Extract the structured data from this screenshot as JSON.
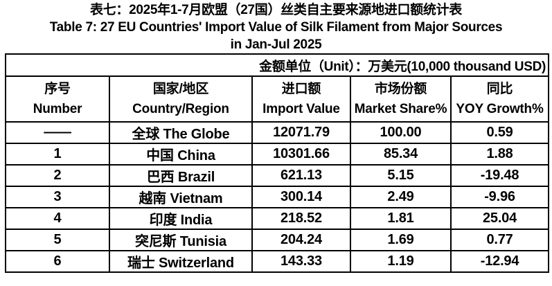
{
  "title": {
    "line1_zh": "表七：2025年1-7月欧盟（27国）丝类自主要来源地进口额统计表",
    "line2_en": "Table 7: 27 EU Countries' Import Value of Silk Filament from Major Sources",
    "line3_en": "in Jan-Jul 2025"
  },
  "unit_note": "金额单位（Unit）：万美元(10,000 thousand USD)",
  "colors": {
    "text": "#000000",
    "border": "#000000",
    "background": "#ffffff"
  },
  "chart_data": {
    "type": "table",
    "title": "表七：2025年1-7月欧盟（27国）丝类自主要来源地进口额统计表 / Table 7: 27 EU Countries' Import Value of Silk Filament from Major Sources in Jan-Jul 2025",
    "unit": "万美元(10,000 thousand USD)",
    "columns": [
      {
        "zh": "序号",
        "en": "Number"
      },
      {
        "zh": "国家/地区",
        "en": "Country/Region"
      },
      {
        "zh": "进口额",
        "en": "Import Value"
      },
      {
        "zh": "市场份额",
        "en": "Market Share%"
      },
      {
        "zh": "同比",
        "en": "YOY Growth%"
      }
    ],
    "rows": [
      {
        "number": "——",
        "country": "全球 The Globe",
        "import_value": "12071.79",
        "market_share": "100.00",
        "yoy_growth": "0.59"
      },
      {
        "number": "1",
        "country": "中国 China",
        "import_value": "10301.66",
        "market_share": "85.34",
        "yoy_growth": "1.88"
      },
      {
        "number": "2",
        "country": "巴西 Brazil",
        "import_value": "621.13",
        "market_share": "5.15",
        "yoy_growth": "-19.48"
      },
      {
        "number": "3",
        "country": "越南 Vietnam",
        "import_value": "300.14",
        "market_share": "2.49",
        "yoy_growth": "-9.96"
      },
      {
        "number": "4",
        "country": "印度 India",
        "import_value": "218.52",
        "market_share": "1.81",
        "yoy_growth": "25.04"
      },
      {
        "number": "5",
        "country": "突尼斯 Tunisia",
        "import_value": "204.24",
        "market_share": "1.69",
        "yoy_growth": "0.77"
      },
      {
        "number": "6",
        "country": "瑞士 Switzerland",
        "import_value": "143.33",
        "market_share": "1.19",
        "yoy_growth": "-12.94"
      }
    ]
  }
}
